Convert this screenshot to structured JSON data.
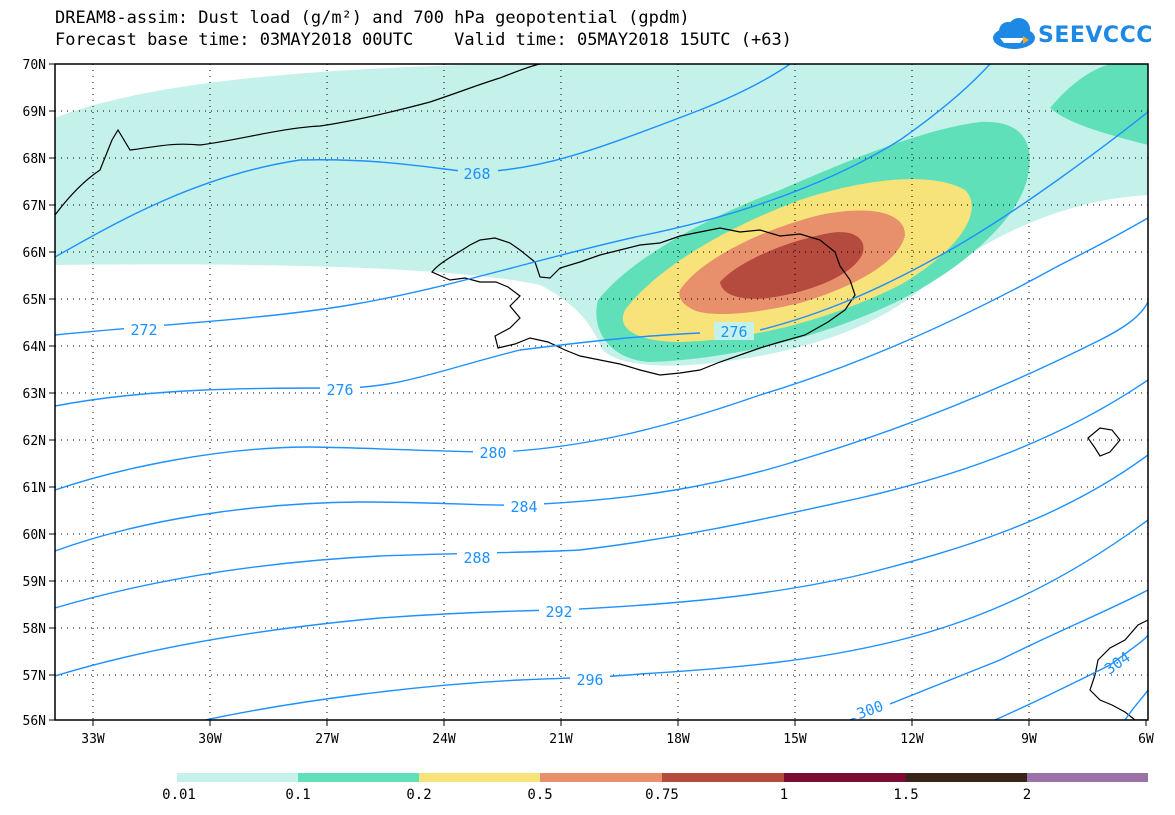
{
  "title": {
    "line1": "DREAM8-assim: Dust load (g/m²) and 700 hPa geopotential (gpdm)",
    "line2": "Forecast base time: 03MAY2018 00UTC    Valid time: 05MAY2018 15UTC (+63)"
  },
  "logo": {
    "text": "SEEVCCC",
    "icon": "cloud-icon"
  },
  "map": {
    "lat_labels": [
      "70N",
      "69N",
      "68N",
      "67N",
      "66N",
      "65N",
      "64N",
      "63N",
      "62N",
      "61N",
      "60N",
      "59N",
      "58N",
      "57N",
      "56N"
    ],
    "lon_labels": [
      "33W",
      "30W",
      "27W",
      "24W",
      "21W",
      "18W",
      "15W",
      "12W",
      "9W",
      "6W"
    ],
    "contour_labels": [
      "268",
      "272",
      "276",
      "276",
      "280",
      "284",
      "288",
      "292",
      "296",
      "300",
      "304"
    ]
  },
  "colorbar": {
    "labels": [
      "0.01",
      "0.1",
      "0.2",
      "0.5",
      "0.75",
      "1",
      "1.5",
      "2"
    ],
    "colors": [
      "#c4f1ea",
      "#5fe0b9",
      "#f8e27a",
      "#e88f6c",
      "#b54a3e",
      "#7a0b32",
      "#3a2419",
      "#9b72a8"
    ]
  }
}
